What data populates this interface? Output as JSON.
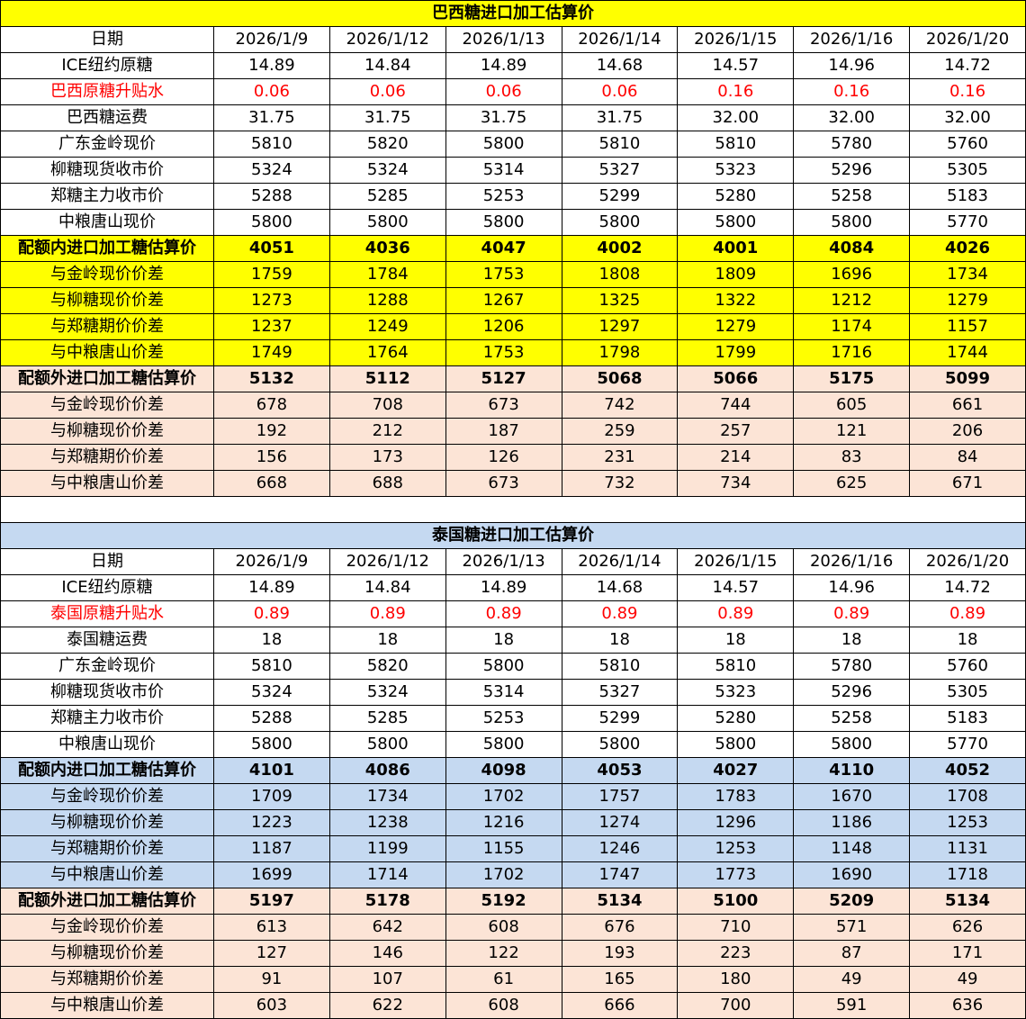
{
  "colors": {
    "highlight_brazil": "#ffff00",
    "highlight_thai": "#c5d9f1",
    "out_quota": "#fce4d6",
    "premium_text": "#ff0000"
  },
  "tables": [
    {
      "title": "巴西糖进口加工估算价",
      "rows": [
        {
          "label": "日期",
          "style": "",
          "values": [
            "2026/1/9",
            "2026/1/12",
            "2026/1/13",
            "2026/1/14",
            "2026/1/15",
            "2026/1/16",
            "2026/1/20"
          ]
        },
        {
          "label": "ICE纽约原糖",
          "style": "",
          "values": [
            "14.89",
            "14.84",
            "14.89",
            "14.68",
            "14.57",
            "14.96",
            "14.72"
          ]
        },
        {
          "label": "巴西原糖升贴水",
          "style": "red",
          "values": [
            "0.06",
            "0.06",
            "0.06",
            "0.06",
            "0.16",
            "0.16",
            "0.16"
          ]
        },
        {
          "label": "巴西糖运费",
          "style": "",
          "values": [
            "31.75",
            "31.75",
            "31.75",
            "31.75",
            "32.00",
            "32.00",
            "32.00"
          ]
        },
        {
          "label": "广东金岭现价",
          "style": "",
          "values": [
            "5810",
            "5820",
            "5800",
            "5810",
            "5810",
            "5780",
            "5760"
          ]
        },
        {
          "label": "柳糖现货收市价",
          "style": "",
          "values": [
            "5324",
            "5324",
            "5314",
            "5327",
            "5323",
            "5296",
            "5305"
          ]
        },
        {
          "label": "郑糖主力收市价",
          "style": "",
          "values": [
            "5288",
            "5285",
            "5253",
            "5299",
            "5280",
            "5258",
            "5183"
          ]
        },
        {
          "label": "中粮唐山现价",
          "style": "",
          "values": [
            "5800",
            "5800",
            "5800",
            "5800",
            "5800",
            "5800",
            "5770"
          ]
        },
        {
          "label": "配额内进口加工糖估算价",
          "style": "yellow bold",
          "values": [
            "4051",
            "4036",
            "4047",
            "4002",
            "4001",
            "4084",
            "4026"
          ]
        },
        {
          "label": "与金岭现价价差",
          "style": "yellow",
          "values": [
            "1759",
            "1784",
            "1753",
            "1808",
            "1809",
            "1696",
            "1734"
          ]
        },
        {
          "label": "与柳糖现价价差",
          "style": "yellow",
          "values": [
            "1273",
            "1288",
            "1267",
            "1325",
            "1322",
            "1212",
            "1279"
          ]
        },
        {
          "label": "与郑糖期价价差",
          "style": "yellow",
          "values": [
            "1237",
            "1249",
            "1206",
            "1297",
            "1279",
            "1174",
            "1157"
          ]
        },
        {
          "label": "与中粮唐山价差",
          "style": "yellow",
          "values": [
            "1749",
            "1764",
            "1753",
            "1798",
            "1799",
            "1716",
            "1744"
          ]
        },
        {
          "label": "配额外进口加工糖估算价",
          "style": "peach bold",
          "values": [
            "5132",
            "5112",
            "5127",
            "5068",
            "5066",
            "5175",
            "5099"
          ]
        },
        {
          "label": "与金岭现价价差",
          "style": "peach",
          "values": [
            "678",
            "708",
            "673",
            "742",
            "744",
            "605",
            "661"
          ]
        },
        {
          "label": "与柳糖现价价差",
          "style": "peach",
          "values": [
            "192",
            "212",
            "187",
            "259",
            "257",
            "121",
            "206"
          ]
        },
        {
          "label": "与郑糖期价价差",
          "style": "peach",
          "values": [
            "156",
            "173",
            "126",
            "231",
            "214",
            "83",
            "84"
          ]
        },
        {
          "label": "与中粮唐山价差",
          "style": "peach",
          "values": [
            "668",
            "688",
            "673",
            "732",
            "734",
            "625",
            "671"
          ]
        }
      ]
    },
    {
      "title": "泰国糖进口加工估算价",
      "rows": [
        {
          "label": "日期",
          "style": "",
          "values": [
            "2026/1/9",
            "2026/1/12",
            "2026/1/13",
            "2026/1/14",
            "2026/1/15",
            "2026/1/16",
            "2026/1/20"
          ]
        },
        {
          "label": "ICE纽约原糖",
          "style": "",
          "values": [
            "14.89",
            "14.84",
            "14.89",
            "14.68",
            "14.57",
            "14.96",
            "14.72"
          ]
        },
        {
          "label": "泰国原糖升贴水",
          "style": "red",
          "values": [
            "0.89",
            "0.89",
            "0.89",
            "0.89",
            "0.89",
            "0.89",
            "0.89"
          ]
        },
        {
          "label": "泰国糖运费",
          "style": "",
          "values": [
            "18",
            "18",
            "18",
            "18",
            "18",
            "18",
            "18"
          ]
        },
        {
          "label": "广东金岭现价",
          "style": "",
          "values": [
            "5810",
            "5820",
            "5800",
            "5810",
            "5810",
            "5780",
            "5760"
          ]
        },
        {
          "label": "柳糖现货收市价",
          "style": "",
          "values": [
            "5324",
            "5324",
            "5314",
            "5327",
            "5323",
            "5296",
            "5305"
          ]
        },
        {
          "label": "郑糖主力收市价",
          "style": "",
          "values": [
            "5288",
            "5285",
            "5253",
            "5299",
            "5280",
            "5258",
            "5183"
          ]
        },
        {
          "label": "中粮唐山现价",
          "style": "",
          "values": [
            "5800",
            "5800",
            "5800",
            "5800",
            "5800",
            "5800",
            "5770"
          ]
        },
        {
          "label": "配额内进口加工糖估算价",
          "style": "blue bold",
          "values": [
            "4101",
            "4086",
            "4098",
            "4053",
            "4027",
            "4110",
            "4052"
          ]
        },
        {
          "label": "与金岭现价价差",
          "style": "blue",
          "values": [
            "1709",
            "1734",
            "1702",
            "1757",
            "1783",
            "1670",
            "1708"
          ]
        },
        {
          "label": "与柳糖现价价差",
          "style": "blue",
          "values": [
            "1223",
            "1238",
            "1216",
            "1274",
            "1296",
            "1186",
            "1253"
          ]
        },
        {
          "label": "与郑糖期价价差",
          "style": "blue",
          "values": [
            "1187",
            "1199",
            "1155",
            "1246",
            "1253",
            "1148",
            "1131"
          ]
        },
        {
          "label": "与中粮唐山价差",
          "style": "blue",
          "values": [
            "1699",
            "1714",
            "1702",
            "1747",
            "1773",
            "1690",
            "1718"
          ]
        },
        {
          "label": "配额外进口加工糖估算价",
          "style": "peach bold",
          "values": [
            "5197",
            "5178",
            "5192",
            "5134",
            "5100",
            "5209",
            "5134"
          ]
        },
        {
          "label": "与金岭现价价差",
          "style": "peach",
          "values": [
            "613",
            "642",
            "608",
            "676",
            "710",
            "571",
            "626"
          ]
        },
        {
          "label": "与柳糖现价价差",
          "style": "peach",
          "values": [
            "127",
            "146",
            "122",
            "193",
            "223",
            "87",
            "171"
          ]
        },
        {
          "label": "与郑糖期价价差",
          "style": "peach",
          "values": [
            "91",
            "107",
            "61",
            "165",
            "180",
            "49",
            "49"
          ]
        },
        {
          "label": "与中粮唐山价差",
          "style": "peach",
          "values": [
            "603",
            "622",
            "608",
            "666",
            "700",
            "591",
            "636"
          ]
        }
      ]
    }
  ]
}
